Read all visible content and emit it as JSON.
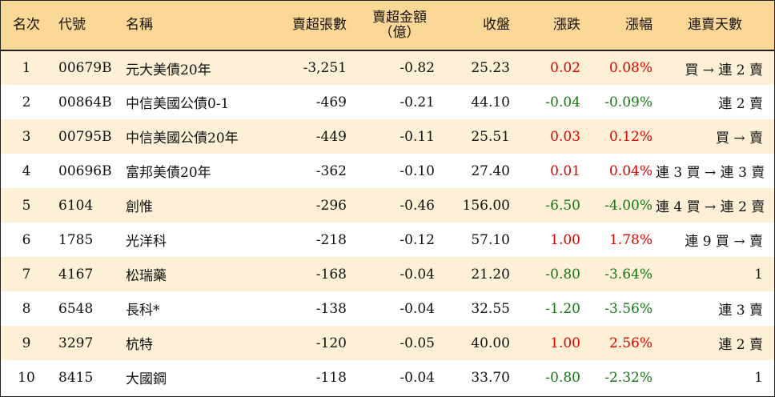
{
  "headers": {
    "rank": "名次",
    "code": "代號",
    "name": "名稱",
    "net_sell_volume": "賣超張數",
    "net_sell_amount_line1": "賣超金額",
    "net_sell_amount_line2": "（億）",
    "close": "收盤",
    "change": "漲跌",
    "change_pct": "漲幅",
    "streak": "連賣天數"
  },
  "colors": {
    "header_bg": "#fcd896",
    "odd_row_bg": "#fdf0d7",
    "up": "#e00000",
    "down": "#107a10"
  },
  "rows": [
    {
      "rank": "1",
      "code": "00679B",
      "name": "元大美債20年",
      "volume": "-3,251",
      "amount": "-0.82",
      "close": "25.23",
      "change": "0.02",
      "pct": "0.08%",
      "dir": "up",
      "streak": "買 → 連 2 賣"
    },
    {
      "rank": "2",
      "code": "00864B",
      "name": "中信美國公債0-1",
      "volume": "-469",
      "amount": "-0.21",
      "close": "44.10",
      "change": "-0.04",
      "pct": "-0.09%",
      "dir": "down",
      "streak": "連 2 賣"
    },
    {
      "rank": "3",
      "code": "00795B",
      "name": "中信美國公債20年",
      "volume": "-449",
      "amount": "-0.11",
      "close": "25.51",
      "change": "0.03",
      "pct": "0.12%",
      "dir": "up",
      "streak": "買 → 賣"
    },
    {
      "rank": "4",
      "code": "00696B",
      "name": "富邦美債20年",
      "volume": "-362",
      "amount": "-0.10",
      "close": "27.40",
      "change": "0.01",
      "pct": "0.04%",
      "dir": "up",
      "streak": "連 3 買 → 連 3 賣"
    },
    {
      "rank": "5",
      "code": "6104",
      "name": "創惟",
      "volume": "-296",
      "amount": "-0.46",
      "close": "156.00",
      "change": "-6.50",
      "pct": "-4.00%",
      "dir": "down",
      "streak": "連 4 買 → 連 2 賣"
    },
    {
      "rank": "6",
      "code": "1785",
      "name": "光洋科",
      "volume": "-218",
      "amount": "-0.12",
      "close": "57.10",
      "change": "1.00",
      "pct": "1.78%",
      "dir": "up",
      "streak": "連 9 買 → 賣"
    },
    {
      "rank": "7",
      "code": "4167",
      "name": "松瑞藥",
      "volume": "-168",
      "amount": "-0.04",
      "close": "21.20",
      "change": "-0.80",
      "pct": "-3.64%",
      "dir": "down",
      "streak": "1"
    },
    {
      "rank": "8",
      "code": "6548",
      "name": "長科*",
      "volume": "-138",
      "amount": "-0.04",
      "close": "32.55",
      "change": "-1.20",
      "pct": "-3.56%",
      "dir": "down",
      "streak": "連 3 賣"
    },
    {
      "rank": "9",
      "code": "3297",
      "name": "杭特",
      "volume": "-120",
      "amount": "-0.05",
      "close": "40.00",
      "change": "1.00",
      "pct": "2.56%",
      "dir": "up",
      "streak": "連 2 賣"
    },
    {
      "rank": "10",
      "code": "8415",
      "name": "大國鋼",
      "volume": "-118",
      "amount": "-0.04",
      "close": "33.70",
      "change": "-0.80",
      "pct": "-2.32%",
      "dir": "down",
      "streak": "1"
    }
  ]
}
